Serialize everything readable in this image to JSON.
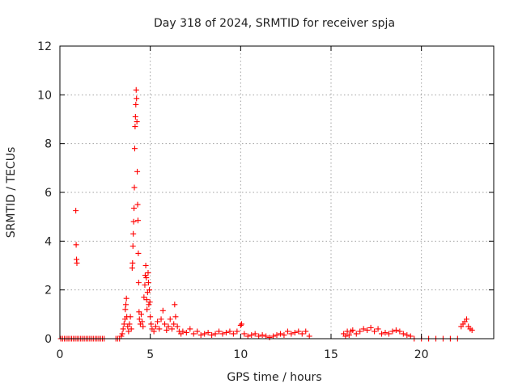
{
  "chart_data": {
    "type": "scatter",
    "title": "Day 318 of 2024, SRMTID for receiver spja",
    "xlabel": "GPS time / hours",
    "ylabel": "SRMTID / TECUs",
    "xlim": [
      0,
      24
    ],
    "ylim": [
      0,
      12
    ],
    "xticks": [
      0,
      5,
      10,
      15,
      20
    ],
    "yticks": [
      0,
      2,
      4,
      6,
      8,
      10,
      12
    ],
    "grid": true,
    "marker": "plus",
    "color": "#ff0000",
    "series": [
      {
        "points": [
          [
            0.05,
            0
          ],
          [
            0.15,
            0
          ],
          [
            0.25,
            0
          ],
          [
            0.35,
            0
          ],
          [
            0.45,
            0
          ],
          [
            0.55,
            0
          ],
          [
            0.65,
            0
          ],
          [
            0.75,
            0
          ],
          [
            0.85,
            0
          ],
          [
            0.95,
            0
          ],
          [
            1.05,
            0
          ],
          [
            1.15,
            0
          ],
          [
            1.25,
            0
          ],
          [
            1.35,
            0
          ],
          [
            1.45,
            0
          ],
          [
            1.55,
            0
          ],
          [
            1.65,
            0
          ],
          [
            1.75,
            0
          ],
          [
            1.85,
            0
          ],
          [
            1.95,
            0
          ],
          [
            2.05,
            0
          ],
          [
            2.15,
            0
          ],
          [
            2.25,
            0
          ],
          [
            2.35,
            0
          ],
          [
            2.45,
            0
          ],
          [
            0.88,
            5.25
          ],
          [
            0.9,
            3.85
          ],
          [
            0.92,
            3.25
          ],
          [
            0.94,
            3.1
          ],
          [
            3.1,
            0
          ],
          [
            3.2,
            0
          ],
          [
            3.3,
            0
          ],
          [
            3.4,
            0.1
          ],
          [
            3.45,
            0.2
          ],
          [
            3.5,
            0.4
          ],
          [
            3.55,
            0.6
          ],
          [
            3.6,
            0.8
          ],
          [
            3.62,
            1.2
          ],
          [
            3.65,
            1.4
          ],
          [
            3.68,
            1.65
          ],
          [
            3.7,
            0.9
          ],
          [
            3.75,
            0.5
          ],
          [
            3.8,
            0.3
          ],
          [
            3.85,
            0.6
          ],
          [
            3.9,
            0.9
          ],
          [
            3.95,
            0.4
          ],
          [
            4.0,
            2.9
          ],
          [
            4.02,
            3.1
          ],
          [
            4.04,
            3.8
          ],
          [
            4.06,
            4.3
          ],
          [
            4.08,
            4.8
          ],
          [
            4.1,
            5.35
          ],
          [
            4.12,
            6.2
          ],
          [
            4.14,
            7.8
          ],
          [
            4.16,
            8.7
          ],
          [
            4.18,
            9.1
          ],
          [
            4.2,
            9.6
          ],
          [
            4.22,
            10.2
          ],
          [
            4.24,
            9.85
          ],
          [
            4.26,
            8.9
          ],
          [
            4.28,
            6.85
          ],
          [
            4.3,
            5.5
          ],
          [
            4.32,
            4.85
          ],
          [
            4.34,
            3.5
          ],
          [
            4.36,
            2.3
          ],
          [
            4.38,
            1.1
          ],
          [
            4.4,
            0.8
          ],
          [
            4.45,
            0.6
          ],
          [
            4.5,
            1.0
          ],
          [
            4.55,
            0.7
          ],
          [
            4.6,
            0.5
          ],
          [
            4.65,
            1.7
          ],
          [
            4.7,
            2.2
          ],
          [
            4.72,
            2.6
          ],
          [
            4.75,
            3.0
          ],
          [
            4.78,
            2.5
          ],
          [
            4.8,
            1.6
          ],
          [
            4.82,
            1.2
          ],
          [
            4.85,
            1.9
          ],
          [
            4.88,
            2.7
          ],
          [
            4.9,
            2.3
          ],
          [
            4.92,
            1.4
          ],
          [
            4.95,
            2.0
          ],
          [
            4.98,
            1.5
          ],
          [
            5.0,
            0.9
          ],
          [
            5.05,
            0.6
          ],
          [
            5.1,
            0.4
          ],
          [
            5.2,
            0.3
          ],
          [
            5.3,
            0.5
          ],
          [
            5.4,
            0.7
          ],
          [
            5.5,
            0.4
          ],
          [
            5.6,
            0.8
          ],
          [
            5.7,
            1.15
          ],
          [
            5.8,
            0.6
          ],
          [
            5.9,
            0.35
          ],
          [
            6.0,
            0.5
          ],
          [
            6.1,
            0.8
          ],
          [
            6.2,
            0.4
          ],
          [
            6.3,
            0.6
          ],
          [
            6.35,
            1.4
          ],
          [
            6.4,
            0.9
          ],
          [
            6.5,
            0.5
          ],
          [
            6.6,
            0.3
          ],
          [
            6.7,
            0.2
          ],
          [
            6.8,
            0.3
          ],
          [
            7.0,
            0.25
          ],
          [
            7.2,
            0.4
          ],
          [
            7.4,
            0.2
          ],
          [
            7.6,
            0.3
          ],
          [
            7.8,
            0.15
          ],
          [
            8.0,
            0.2
          ],
          [
            8.2,
            0.25
          ],
          [
            8.4,
            0.15
          ],
          [
            8.6,
            0.2
          ],
          [
            8.8,
            0.3
          ],
          [
            9.0,
            0.2
          ],
          [
            9.2,
            0.25
          ],
          [
            9.4,
            0.3
          ],
          [
            9.6,
            0.2
          ],
          [
            9.8,
            0.3
          ],
          [
            10.0,
            0.55
          ],
          [
            10.05,
            0.6
          ],
          [
            10.2,
            0.2
          ],
          [
            10.4,
            0.1
          ],
          [
            10.6,
            0.15
          ],
          [
            10.8,
            0.2
          ],
          [
            11.0,
            0.1
          ],
          [
            11.2,
            0.15
          ],
          [
            11.4,
            0.1
          ],
          [
            11.6,
            0.05
          ],
          [
            11.8,
            0.1
          ],
          [
            12.0,
            0.15
          ],
          [
            12.2,
            0.2
          ],
          [
            12.4,
            0.15
          ],
          [
            12.6,
            0.3
          ],
          [
            12.8,
            0.2
          ],
          [
            13.0,
            0.25
          ],
          [
            13.2,
            0.3
          ],
          [
            13.4,
            0.2
          ],
          [
            13.6,
            0.3
          ],
          [
            13.8,
            0.1
          ],
          [
            15.7,
            0.2
          ],
          [
            15.8,
            0.1
          ],
          [
            15.9,
            0.3
          ],
          [
            16.0,
            0.15
          ],
          [
            16.1,
            0.3
          ],
          [
            16.2,
            0.35
          ],
          [
            16.4,
            0.2
          ],
          [
            16.6,
            0.3
          ],
          [
            16.8,
            0.4
          ],
          [
            17.0,
            0.35
          ],
          [
            17.2,
            0.45
          ],
          [
            17.4,
            0.3
          ],
          [
            17.6,
            0.4
          ],
          [
            17.8,
            0.2
          ],
          [
            18.0,
            0.25
          ],
          [
            18.2,
            0.2
          ],
          [
            18.4,
            0.3
          ],
          [
            18.6,
            0.35
          ],
          [
            18.8,
            0.3
          ],
          [
            19.0,
            0.2
          ],
          [
            19.2,
            0.15
          ],
          [
            19.4,
            0.1
          ],
          [
            19.6,
            0
          ],
          [
            20.0,
            0
          ],
          [
            20.4,
            0
          ],
          [
            20.8,
            0
          ],
          [
            21.2,
            0
          ],
          [
            21.6,
            0
          ],
          [
            22.0,
            0
          ],
          [
            22.2,
            0.5
          ],
          [
            22.3,
            0.6
          ],
          [
            22.4,
            0.7
          ],
          [
            22.5,
            0.8
          ],
          [
            22.6,
            0.5
          ],
          [
            22.7,
            0.4
          ],
          [
            22.8,
            0.35
          ]
        ]
      }
    ]
  }
}
